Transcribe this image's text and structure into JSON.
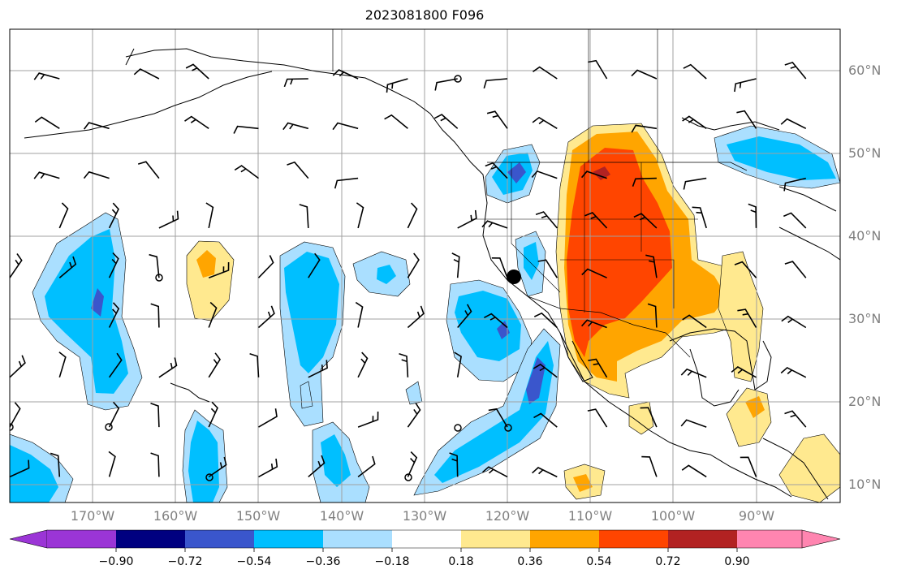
{
  "title": "2023081800 F096",
  "map": {
    "lat_labels": [
      "60°N",
      "50°N",
      "40°N",
      "30°N",
      "20°N",
      "10°N"
    ],
    "lon_labels": [
      "170°W",
      "160°W",
      "150°W",
      "140°W",
      "130°W",
      "120°W",
      "110°W",
      "100°W",
      "90°W"
    ],
    "gridline_color": "#a0a0a0",
    "extent": {
      "lon": [
        -180,
        -80
      ],
      "lat": [
        8,
        65
      ]
    }
  },
  "colorbar": {
    "ticks": [
      "−0.90",
      "−0.72",
      "−0.54",
      "−0.36",
      "−0.18",
      "0.18",
      "0.36",
      "0.54",
      "0.72",
      "0.90"
    ],
    "colors": [
      "#9b35d6",
      "#000080",
      "#3a56cc",
      "#00bfff",
      "#aadfff",
      "#ffffff",
      "#ffe98f",
      "#ffa500",
      "#ff4500",
      "#b22222",
      "#ff85b0"
    ]
  },
  "chart_data": {
    "type": "heatmap",
    "title": "2023081800 F096",
    "levels": [
      -0.9,
      -0.72,
      -0.54,
      -0.36,
      -0.18,
      0.18,
      0.36,
      0.54,
      0.72,
      0.9
    ],
    "xlim": [
      -180,
      -80
    ],
    "ylim": [
      8,
      65
    ],
    "marker": {
      "lon": -119.5,
      "lat": 35
    }
  }
}
